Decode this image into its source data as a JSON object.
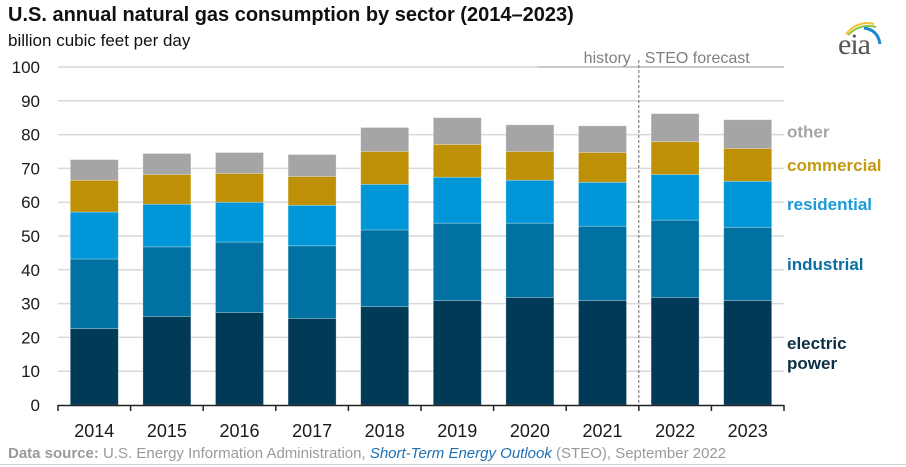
{
  "header": {
    "title": "U.S. annual natural gas consumption by sector (2014–2023)",
    "subtitle": "billion cubic feet per day"
  },
  "logo": {
    "text": "eia",
    "icon": "eia-logo-icon"
  },
  "footer": {
    "label": "Data source:",
    "source": " U.S. Energy Information Administration, ",
    "publication": "Short-Term Energy Outlook",
    "suffix": " (STEO), September 2022"
  },
  "colors": {
    "electric_power": "#003a57",
    "industrial": "#0071a1",
    "residential": "#0096d7",
    "commercial": "#bd9005",
    "other": "#a5a5a5",
    "grid": "#d9d9d9",
    "axis_text": "#1a1a1a",
    "annotation_text": "#7f7f7f"
  },
  "chart_data": {
    "type": "bar",
    "stacked": true,
    "title": "U.S. annual natural gas consumption by sector (2014–2023)",
    "ylabel": "billion cubic feet per day",
    "xlabel": "",
    "categories": [
      "2014",
      "2015",
      "2016",
      "2017",
      "2018",
      "2019",
      "2020",
      "2021",
      "2022",
      "2023"
    ],
    "ylim": [
      0,
      100
    ],
    "yticks": [
      0,
      10,
      20,
      30,
      40,
      50,
      60,
      70,
      80,
      90,
      100
    ],
    "grid": true,
    "legend_placement": "right (direct labels)",
    "series": [
      {
        "name": "electric power",
        "key": "electric_power",
        "label_lines": [
          "electric",
          "power"
        ],
        "values": [
          22.6,
          26.2,
          27.4,
          25.6,
          29.1,
          30.9,
          31.8,
          30.9,
          31.8,
          30.9
        ]
      },
      {
        "name": "industrial",
        "key": "industrial",
        "label_lines": [
          "industrial"
        ],
        "values": [
          20.6,
          20.6,
          20.8,
          21.5,
          22.7,
          22.9,
          22.0,
          22.0,
          22.9,
          21.7
        ]
      },
      {
        "name": "residential",
        "key": "residential",
        "label_lines": [
          "residential"
        ],
        "values": [
          13.9,
          12.6,
          11.8,
          12.0,
          13.5,
          13.6,
          12.7,
          13.0,
          13.5,
          13.6
        ]
      },
      {
        "name": "commercial",
        "key": "commercial",
        "label_lines": [
          "commercial"
        ],
        "values": [
          9.4,
          8.8,
          8.5,
          8.5,
          9.7,
          9.7,
          8.5,
          8.8,
          9.7,
          9.7
        ]
      },
      {
        "name": "other",
        "key": "other",
        "label_lines": [
          "other"
        ],
        "values": [
          6.1,
          6.2,
          6.2,
          6.5,
          7.1,
          7.9,
          7.9,
          7.9,
          8.3,
          8.5
        ]
      }
    ],
    "annotations": {
      "history": "history",
      "forecast": "STEO forecast",
      "forecast_starts_after": "2021"
    }
  }
}
